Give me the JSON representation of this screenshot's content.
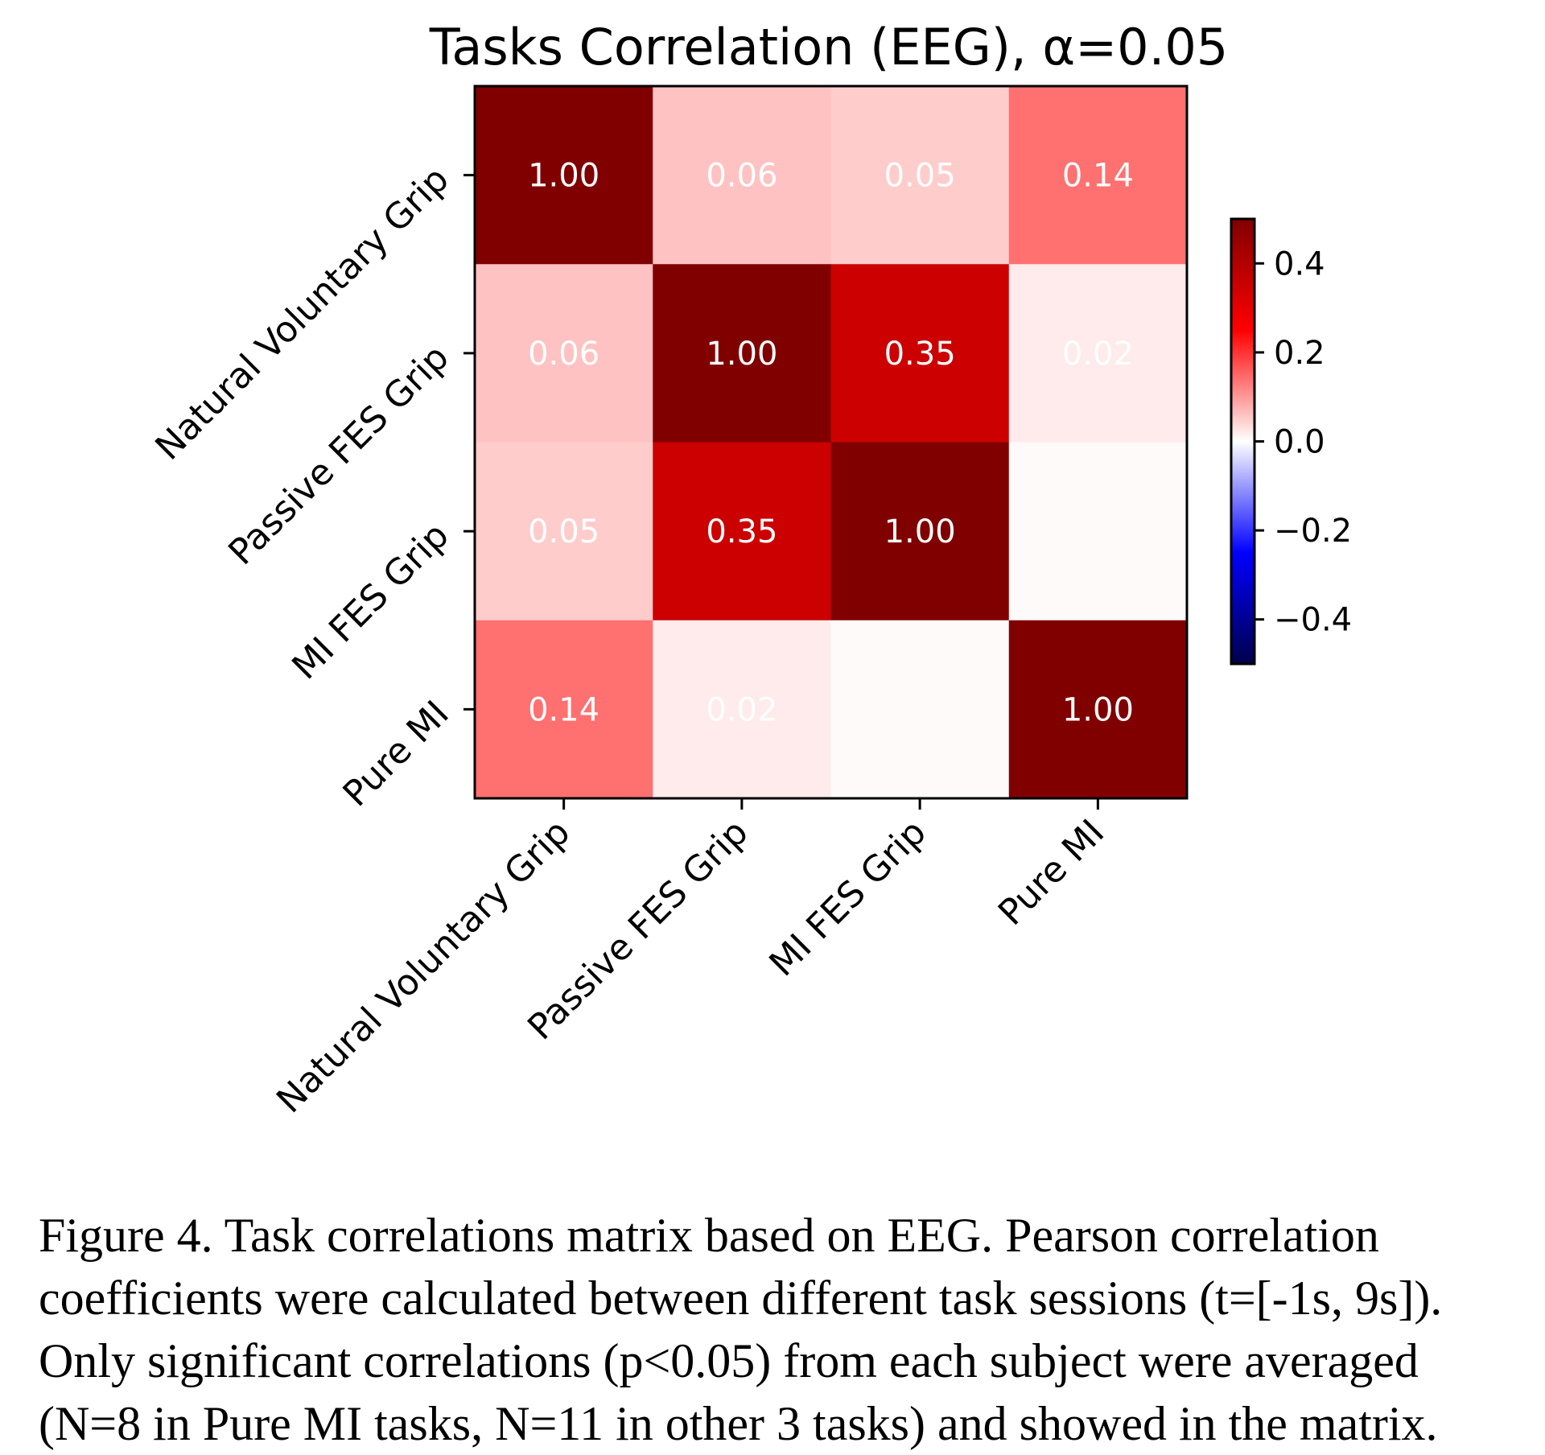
{
  "chart_data": {
    "type": "heatmap",
    "title": "Tasks Correlation (EEG), α=0.05",
    "row_labels": [
      "Natural Voluntary Grip",
      "Passive FES Grip",
      "MI FES Grip",
      "Pure MI"
    ],
    "col_labels": [
      "Natural Voluntary Grip",
      "Passive FES Grip",
      "MI FES Grip",
      "Pure MI"
    ],
    "values": [
      [
        1.0,
        0.06,
        0.05,
        0.14
      ],
      [
        0.06,
        1.0,
        0.35,
        0.02
      ],
      [
        0.05,
        0.35,
        1.0,
        0.005
      ],
      [
        0.14,
        0.02,
        0.005,
        1.0
      ]
    ],
    "cell_labels": [
      [
        "1.00",
        "0.06",
        "0.05",
        "0.14"
      ],
      [
        "0.06",
        "1.00",
        "0.35",
        "0.02"
      ],
      [
        "0.05",
        "0.35",
        "1.00",
        ""
      ],
      [
        "0.14",
        "0.02",
        "",
        "1.00"
      ]
    ],
    "colormap": "seismic",
    "vmin": -0.5,
    "vmax": 0.5,
    "colorbar_ticks": [
      0.4,
      0.2,
      0.0,
      -0.2,
      -0.4
    ],
    "colorbar_tick_labels": [
      "0.4",
      "0.2",
      "0.0",
      "−0.2",
      "−0.4"
    ],
    "colors": {
      "max_red": "#800000",
      "mid_white": "#ffffff",
      "min_blue": "#00004c",
      "text": "#ffffff"
    }
  },
  "caption": {
    "lines": [
      "Figure 4. Task correlations matrix based on EEG. Pearson correlation",
      "coefficients were calculated between different task sessions (t=[-1s, 9s]).",
      "Only significant correlations (p<0.05) from each subject were averaged",
      "(N=8 in Pure MI tasks, N=11 in other 3 tasks) and showed in the matrix."
    ]
  }
}
